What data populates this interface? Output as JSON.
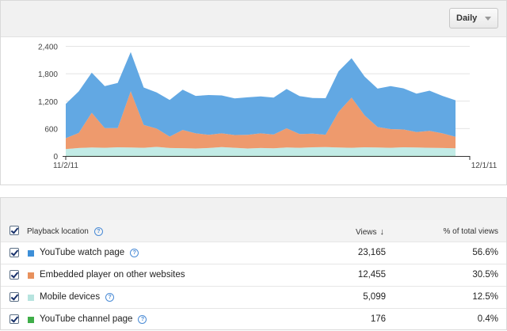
{
  "toolbar": {
    "granularity_label": "Daily"
  },
  "chart_data": {
    "type": "area",
    "stacked": true,
    "x_labels": [
      "11/2/11",
      "12/1/11"
    ],
    "y_ticks": [
      "0",
      "600",
      "1,200",
      "1,800",
      "2,400"
    ],
    "ylim": [
      0,
      2600
    ],
    "grid": true,
    "series": [
      {
        "name": "YouTube channel page",
        "color": "#3fae49",
        "values": [
          5,
          5,
          6,
          5,
          5,
          6,
          5,
          5,
          5,
          6,
          5,
          5,
          6,
          5,
          5,
          5,
          5,
          6,
          5,
          5,
          6,
          5,
          5,
          6,
          5,
          5,
          6,
          5,
          5,
          5,
          5
        ]
      },
      {
        "name": "Mobile devices",
        "color": "#c2ebe6",
        "values": [
          145,
          170,
          180,
          175,
          185,
          180,
          175,
          195,
          170,
          165,
          160,
          170,
          190,
          175,
          160,
          170,
          165,
          180,
          175,
          185,
          190,
          180,
          175,
          185,
          180,
          175,
          185,
          180,
          175,
          170,
          165
        ]
      },
      {
        "name": "Embedded player on other websites",
        "color": "#ee9a6d",
        "values": [
          240,
          330,
          760,
          430,
          420,
          1230,
          500,
          400,
          250,
          400,
          330,
          290,
          300,
          280,
          300,
          320,
          300,
          420,
          300,
          300,
          270,
          780,
          1100,
          700,
          450,
          410,
          390,
          340,
          370,
          320,
          250
        ]
      },
      {
        "name": "YouTube watch page",
        "color": "#62a8e3",
        "values": [
          750,
          910,
          880,
          920,
          990,
          860,
          820,
          790,
          800,
          880,
          820,
          870,
          830,
          800,
          820,
          810,
          810,
          860,
          830,
          780,
          800,
          890,
          860,
          850,
          840,
          940,
          900,
          840,
          880,
          820,
          800
        ]
      }
    ]
  },
  "table": {
    "header": {
      "dimension_label": "Playback location",
      "views_label": "Views",
      "sort_arrow": "↓",
      "pct_label": "% of total views"
    },
    "rows": [
      {
        "label": "YouTube watch page",
        "color": "#3d8fd8",
        "views": "23,165",
        "pct": "56.6%"
      },
      {
        "label": "Embedded player on other websites",
        "color": "#e8915d",
        "views": "12,455",
        "pct": "30.5%"
      },
      {
        "label": "Mobile devices",
        "color": "#b7e4df",
        "views": "5,099",
        "pct": "12.5%"
      },
      {
        "label": "YouTube channel page",
        "color": "#3fae49",
        "views": "176",
        "pct": "0.4%"
      }
    ]
  }
}
